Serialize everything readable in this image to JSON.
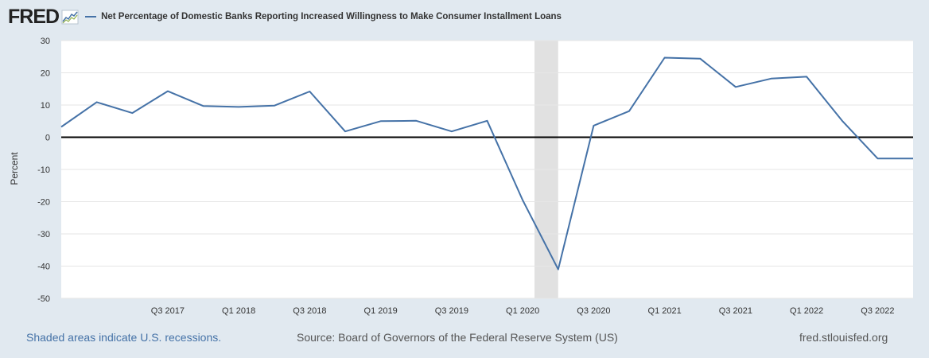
{
  "header": {
    "logo": "FRED",
    "logo_icon": "line-graph-icon",
    "title": "Net Percentage of Domestic Banks Reporting Increased Willingness to Make Consumer Installment Loans"
  },
  "footer": {
    "recession_note": "Shaded areas indicate U.S. recessions.",
    "source": "Source: Board of Governors of the Federal Reserve System (US)",
    "site": "fred.stlouisfed.org"
  },
  "colors": {
    "series": "#4572a7",
    "recession": "#e1e1e1",
    "background": "#e1e9f0",
    "plot": "#ffffff"
  },
  "chart_data": {
    "type": "line",
    "title": "Net Percentage of Domestic Banks Reporting Increased Willingness to Make Consumer Installment Loans",
    "ylabel": "Percent",
    "xlabel": "",
    "ylim": [
      -50,
      30
    ],
    "yticks": [
      30,
      20,
      10,
      0,
      -10,
      -20,
      -30,
      -40,
      -50
    ],
    "xlim": [
      2016.75,
      2022.75
    ],
    "xticks": [
      {
        "label": "Q3 2017",
        "x": 2017.5
      },
      {
        "label": "Q1 2018",
        "x": 2018.0
      },
      {
        "label": "Q3 2018",
        "x": 2018.5
      },
      {
        "label": "Q1 2019",
        "x": 2019.0
      },
      {
        "label": "Q3 2019",
        "x": 2019.5
      },
      {
        "label": "Q1 2020",
        "x": 2020.0
      },
      {
        "label": "Q3 2020",
        "x": 2020.5
      },
      {
        "label": "Q1 2021",
        "x": 2021.0
      },
      {
        "label": "Q3 2021",
        "x": 2021.5
      },
      {
        "label": "Q1 2022",
        "x": 2022.0
      },
      {
        "label": "Q3 2022",
        "x": 2022.5
      }
    ],
    "recessions": [
      [
        2020.0833,
        2020.25
      ]
    ],
    "series": [
      {
        "name": "Net Percentage of Domestic Banks Reporting Increased Willingness to Make Consumer Installment Loans",
        "x": [
          2016.75,
          2017.0,
          2017.25,
          2017.5,
          2017.75,
          2018.0,
          2018.25,
          2018.5,
          2018.75,
          2019.0,
          2019.25,
          2019.5,
          2019.75,
          2020.0,
          2020.25,
          2020.5,
          2020.75,
          2021.0,
          2021.25,
          2021.5,
          2021.75,
          2022.0,
          2022.25,
          2022.5,
          2022.75
        ],
        "values": [
          3.2,
          10.9,
          7.5,
          14.3,
          9.7,
          9.4,
          9.8,
          14.2,
          1.8,
          5.0,
          5.1,
          1.8,
          5.1,
          -19.5,
          -41.0,
          3.6,
          8.1,
          24.7,
          24.4,
          15.6,
          18.2,
          18.8,
          5.1,
          -6.6,
          -6.6
        ]
      }
    ]
  }
}
